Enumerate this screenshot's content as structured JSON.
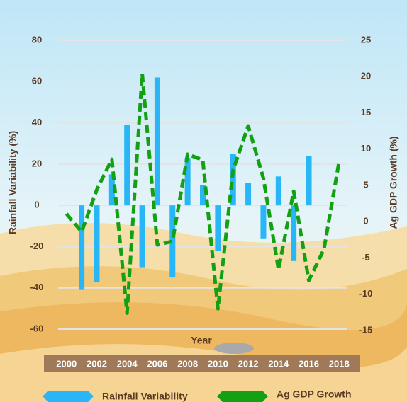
{
  "chart_data": {
    "type": "bar-line",
    "x_label": "Year",
    "y_label": "Rainfall Variability (%)",
    "y2_label": "Ag GDP Growth (%)",
    "x": [
      2000,
      2001,
      2002,
      2003,
      2004,
      2005,
      2006,
      2007,
      2008,
      2009,
      2010,
      2011,
      2012,
      2013,
      2014,
      2015,
      2016,
      2017,
      2018
    ],
    "series": [
      {
        "name": "Rainfall Variability",
        "type": "bar",
        "color": "#29b6f6",
        "values": [
          null,
          -41,
          -37,
          15,
          39,
          -30,
          62,
          -35,
          23,
          10,
          -22,
          25,
          11,
          -16,
          14,
          -27,
          24,
          null,
          null
        ]
      },
      {
        "name": "Ag GDP Growth",
        "type": "line",
        "axis": "y2",
        "color": "#13a013",
        "values": [
          1.1,
          -1.4,
          4.4,
          8.6,
          -12.6,
          20.4,
          -3.2,
          -2.7,
          9.3,
          8.5,
          -12,
          7.1,
          13.2,
          6,
          -6.6,
          4.2,
          -8.1,
          -3.8,
          8.3
        ]
      }
    ],
    "xlim": [
      1999.45,
      2018.55
    ],
    "xticks": [
      2000,
      2002,
      2004,
      2006,
      2008,
      2010,
      2012,
      2014,
      2016,
      2018
    ],
    "ylim": [
      -60,
      80
    ],
    "yticks": [
      -60,
      -40,
      -20,
      0,
      20,
      40,
      60,
      80
    ],
    "y2lim": [
      -15,
      25
    ],
    "y2ticks": [
      -15,
      -10,
      -5,
      0,
      5,
      10,
      15,
      20,
      25
    ],
    "grid": true
  }
}
